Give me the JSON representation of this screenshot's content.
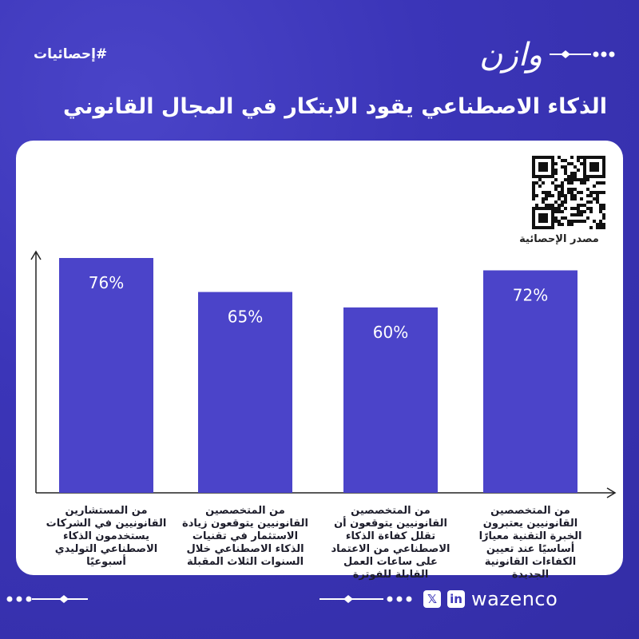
{
  "header": {
    "hashtag": "#إحصائيات",
    "logo_text": "وازن",
    "title": "الذكاء الاصطناعي يقود الابتكار في المجال القانوني"
  },
  "source": {
    "label": "مصدر الإحصائية"
  },
  "footer": {
    "brand": "wazenco",
    "x_icon": "𝕏",
    "linkedin_icon": "in"
  },
  "colors": {
    "background": "#3b35b8",
    "bar": "#4b44c9",
    "card": "#ffffff"
  },
  "chart_data": {
    "type": "bar",
    "title": "الذكاء الاصطناعي يقود الابتكار في المجال القانوني",
    "ylim": [
      0,
      100
    ],
    "categories": [
      "من المستشارين القانونيين في الشركات يستخدمون الذكاء الاصطناعي التوليدي أسبوعيًا",
      "من المتخصصين القانونيين يتوقعون زيادة الاستثمار في تقنيات الذكاء الاصطناعي خلال السنوات الثلاث المقبلة",
      "من المتخصصين القانونيين يتوقعون أن تقلل كفاءة الذكاء الاصطناعي من الاعتماد على ساعات العمل القابلة للفوترة",
      "من المتخصصين القانونيين يعتبرون الخبرة التقنية معيارًا أساسيًا عند تعيين الكفاءات القانونية الجديدة"
    ],
    "values": [
      76,
      65,
      60,
      72
    ],
    "value_labels": [
      "76%",
      "65%",
      "60%",
      "72%"
    ],
    "grid": false
  }
}
